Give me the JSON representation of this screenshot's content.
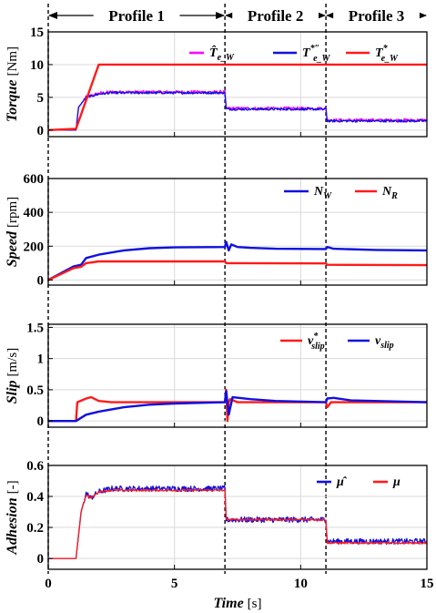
{
  "chart_data": [
    {
      "type": "line",
      "ylabel": "Torque",
      "yunit": "[Nm]",
      "ylim": [
        -1,
        15
      ],
      "yticks": [
        0,
        5,
        10,
        15
      ],
      "xlim": [
        0,
        15
      ],
      "grid": true,
      "legend_position": "top-right",
      "legend": [
        "T̂e_W",
        "T*''e_W",
        "T*e_W"
      ],
      "series": [
        {
          "name": "T̂e_W",
          "color": "#ff00ff",
          "noise": 0.25,
          "x": [
            0,
            1.1,
            1.2,
            1.5,
            2.0,
            2.5,
            7.0,
            7.05,
            11.0,
            11.05,
            15
          ],
          "y": [
            0,
            0,
            3.5,
            5.0,
            5.6,
            5.8,
            5.8,
            3.3,
            3.3,
            1.5,
            1.5
          ]
        },
        {
          "name": "T*''e_W",
          "color": "#1010e0",
          "noise": 0.18,
          "x": [
            0,
            1.1,
            1.2,
            1.5,
            2.0,
            2.5,
            7.0,
            7.05,
            11.0,
            11.05,
            15
          ],
          "y": [
            0,
            0,
            3.5,
            5.0,
            5.5,
            5.7,
            5.7,
            3.2,
            3.2,
            1.4,
            1.4
          ]
        },
        {
          "name": "T*e_W",
          "color": "#ff1a1a",
          "noise": 0,
          "x": [
            0,
            1.1,
            2.0,
            15
          ],
          "y": [
            0,
            0.2,
            10,
            10
          ]
        }
      ]
    },
    {
      "type": "line",
      "ylabel": "Speed",
      "yunit": "[rpm]",
      "ylim": [
        -30,
        600
      ],
      "yticks": [
        0,
        200,
        400,
        600
      ],
      "xlim": [
        0,
        15
      ],
      "grid": true,
      "legend_position": "top-right",
      "legend": [
        "NW",
        "NR"
      ],
      "series": [
        {
          "name": "NW",
          "color": "#1010e0",
          "noise": 0,
          "x": [
            0,
            1.0,
            1.3,
            1.5,
            2.0,
            3.0,
            4.0,
            5.0,
            7.0,
            7.05,
            7.15,
            7.25,
            7.5,
            8.0,
            9.0,
            11.0,
            11.05,
            11.3,
            13.0,
            15
          ],
          "y": [
            0,
            80,
            90,
            130,
            150,
            175,
            188,
            193,
            195,
            225,
            175,
            210,
            195,
            190,
            185,
            183,
            195,
            185,
            178,
            175
          ]
        },
        {
          "name": "NR",
          "color": "#ff1a1a",
          "noise": 0,
          "x": [
            0,
            1.0,
            1.3,
            1.5,
            2.0,
            7.0,
            7.05,
            11.0,
            11.05,
            15
          ],
          "y": [
            0,
            70,
            78,
            100,
            110,
            110,
            100,
            98,
            90,
            88
          ]
        }
      ]
    },
    {
      "type": "line",
      "ylabel": "Slip",
      "yunit": "[m/s]",
      "ylim": [
        -0.1,
        1.55
      ],
      "yticks": [
        0,
        0.5,
        1,
        1.5
      ],
      "xlim": [
        0,
        15
      ],
      "grid": true,
      "legend_position": "top-right",
      "legend": [
        "v*slip",
        "vslip"
      ],
      "series": [
        {
          "name": "v*slip",
          "color": "#ff1a1a",
          "noise": 0,
          "x": [
            0,
            1.1,
            1.15,
            1.5,
            1.7,
            2.0,
            2.5,
            7.0,
            7.05,
            7.1,
            7.15,
            7.2,
            7.5,
            11.0,
            11.05,
            11.2,
            11.5,
            15
          ],
          "y": [
            0,
            0,
            0.3,
            0.36,
            0.38,
            0.32,
            0.3,
            0.3,
            0.5,
            0.0,
            0.3,
            0.35,
            0.3,
            0.3,
            0.22,
            0.3,
            0.3,
            0.3
          ]
        },
        {
          "name": "vslip",
          "color": "#1010e0",
          "noise": 0,
          "x": [
            0,
            1.1,
            1.5,
            2.0,
            3.0,
            4.0,
            5.0,
            7.0,
            7.05,
            7.15,
            7.3,
            8.0,
            9.0,
            11.0,
            11.05,
            11.3,
            12.0,
            15
          ],
          "y": [
            0,
            0,
            0.1,
            0.15,
            0.22,
            0.26,
            0.28,
            0.3,
            0.48,
            0.1,
            0.38,
            0.35,
            0.32,
            0.3,
            0.36,
            0.37,
            0.33,
            0.3
          ]
        }
      ]
    },
    {
      "type": "line",
      "ylabel": "Adhesion",
      "yunit": "[-]",
      "ylim": [
        -0.07,
        0.6
      ],
      "yticks": [
        0,
        0.2,
        0.4,
        0.6
      ],
      "xlim": [
        0,
        15
      ],
      "xticks": [
        0,
        5,
        10,
        15
      ],
      "xlabel": "Time",
      "xunit": "[s]",
      "grid": true,
      "legend_position": "top-right",
      "legend": [
        "μ̂",
        "μ"
      ],
      "series": [
        {
          "name": "μ̂",
          "color": "#1010e0",
          "noise": 0.018,
          "x": [
            0,
            1.1,
            1.3,
            1.5,
            1.7,
            2.0,
            2.5,
            7.0,
            7.05,
            11.0,
            11.05,
            15
          ],
          "y": [
            0,
            0,
            0.3,
            0.42,
            0.39,
            0.43,
            0.45,
            0.45,
            0.25,
            0.25,
            0.11,
            0.11
          ]
        },
        {
          "name": "μ",
          "color": "#ff1a1a",
          "noise": 0.006,
          "x": [
            0,
            1.1,
            1.3,
            1.5,
            1.7,
            2.0,
            2.5,
            7.0,
            7.05,
            11.0,
            11.05,
            15
          ],
          "y": [
            0,
            0,
            0.3,
            0.41,
            0.39,
            0.43,
            0.44,
            0.44,
            0.25,
            0.25,
            0.1,
            0.1
          ]
        }
      ]
    }
  ],
  "profiles": [
    {
      "label": "Profile 1",
      "x0": 0,
      "x1": 7
    },
    {
      "label": "Profile 2",
      "x0": 7,
      "x1": 11
    },
    {
      "label": "Profile 3",
      "x0": 11,
      "x1": 15
    }
  ]
}
